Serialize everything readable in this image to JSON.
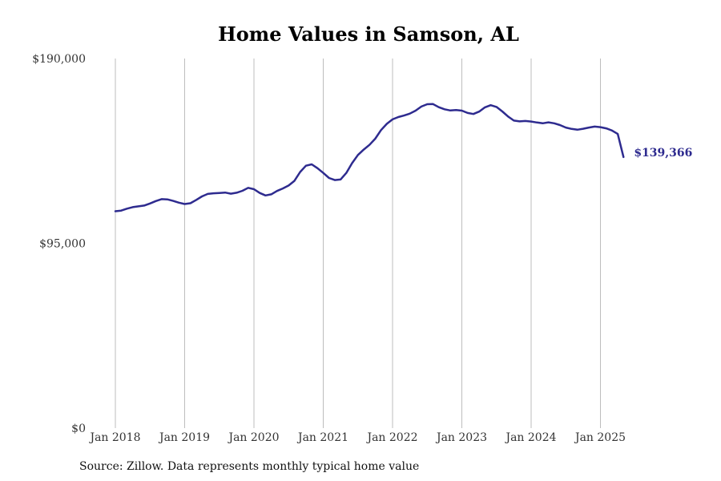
{
  "title": "Home Values in Samson, AL",
  "source": "Source: Zillow. Data represents monthly typical home value",
  "colors": {
    "line": "#2e2b8f",
    "grid": "#bdbdbd"
  },
  "chart_data": {
    "type": "line",
    "title": "Home Values in Samson, AL",
    "ylim": [
      0,
      190000
    ],
    "yticks": [
      0,
      95000,
      190000
    ],
    "ytick_labels": [
      "$0",
      "$95,000",
      "$190,000"
    ],
    "xtick_labels": [
      "Jan 2018",
      "Jan 2019",
      "Jan 2020",
      "Jan 2021",
      "Jan 2022",
      "Jan 2023",
      "Jan 2024",
      "Jan 2025"
    ],
    "grid": "vertical",
    "end_label": "$139,366",
    "series": [
      {
        "start": "2018-01",
        "frequency": "monthly",
        "values": [
          111500,
          111800,
          112800,
          113600,
          114000,
          114400,
          115500,
          116700,
          117700,
          117600,
          116800,
          115900,
          115200,
          115600,
          117300,
          119100,
          120400,
          120700,
          120900,
          121100,
          120500,
          121000,
          122000,
          123500,
          122800,
          120900,
          119600,
          120200,
          121900,
          123200,
          124700,
          127100,
          131700,
          134900,
          135600,
          133600,
          131200,
          128600,
          127500,
          127800,
          131200,
          136200,
          140400,
          143200,
          145600,
          148800,
          153200,
          156400,
          158700,
          159900,
          160700,
          161700,
          163200,
          165300,
          166500,
          166600,
          165000,
          163900,
          163300,
          163500,
          163200,
          162000,
          161500,
          162700,
          164900,
          166000,
          165100,
          162800,
          160200,
          158100,
          157700,
          157900,
          157600,
          157100,
          156700,
          157200,
          156700,
          155800,
          154500,
          153800,
          153400,
          153900,
          154500,
          155000,
          154700,
          154100,
          153000,
          151200,
          139366
        ]
      }
    ]
  }
}
